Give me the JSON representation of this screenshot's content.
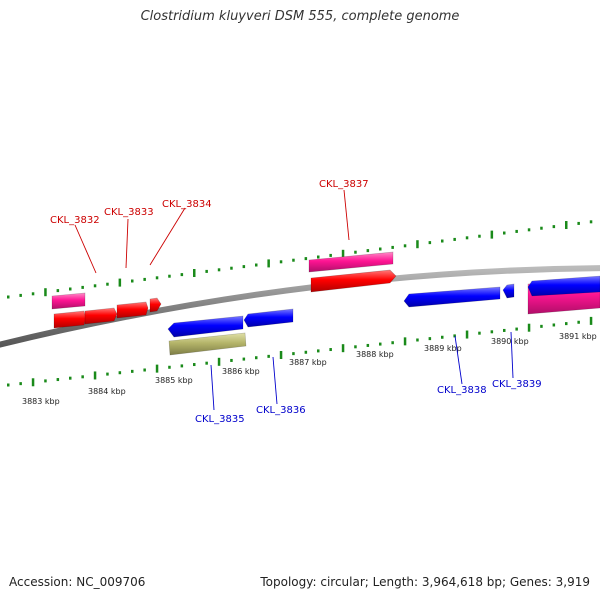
{
  "title": "Clostridium kluyveri DSM 555, complete genome",
  "footer": {
    "accession": "Accession: NC_009706",
    "summary": "Topology: circular; Length: 3,964,618 bp; Genes: 3,919"
  },
  "scale": {
    "ticks": [
      "3883 kbp",
      "3884 kbp",
      "3885 kbp",
      "3886 kbp",
      "3887 kbp",
      "3888 kbp",
      "3889 kbp",
      "3890 kbp",
      "3891 kbp"
    ]
  },
  "colors": {
    "backbone": "#808080",
    "forward_cds": "#ff0000",
    "forward_gene": "#ff1493",
    "reverse_cds": "#0000ff",
    "rna": "#b5b56a",
    "ticks": "#1a8a1a",
    "forward_label": "#cc0000",
    "reverse_label": "#0000cc"
  },
  "labels": {
    "forward": [
      "CKL_3832",
      "CKL_3833",
      "CKL_3834",
      "CKL_3837"
    ],
    "reverse": [
      "CKL_3835",
      "CKL_3836",
      "CKL_3838",
      "CKL_3839"
    ]
  }
}
